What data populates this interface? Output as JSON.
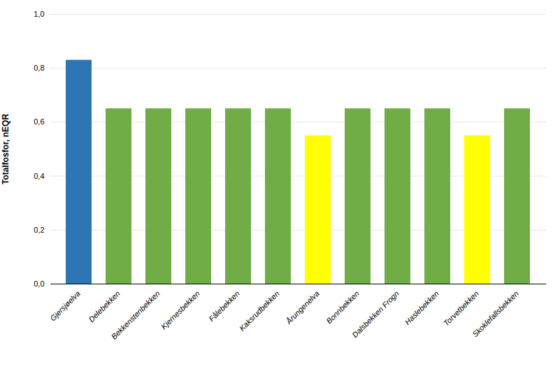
{
  "chart_data": {
    "type": "bar",
    "categories": [
      "Gjersjøelva",
      "Delebekken",
      "Bekkenstenbekken",
      "Kjernesbekken",
      "Fålebekken",
      "Kaksrudbekken",
      "Årungenelva",
      "Bonnbekken",
      "Dalsbekken Frogn",
      "Haslebekken",
      "Torvetbekken",
      "Skoklefallsbekken"
    ],
    "values": [
      0.83,
      0.65,
      0.65,
      0.65,
      0.65,
      0.65,
      0.55,
      0.65,
      0.65,
      0.65,
      0.55,
      0.65
    ],
    "colors": [
      "#2e75b6",
      "#70ad47",
      "#70ad47",
      "#70ad47",
      "#70ad47",
      "#70ad47",
      "#ffff00",
      "#70ad47",
      "#70ad47",
      "#70ad47",
      "#ffff00",
      "#70ad47"
    ],
    "ylabel": "Totalfosfor, nEQR",
    "ylim": [
      0.0,
      1.0
    ],
    "yticks": [
      {
        "value": 0.0,
        "label": "0,0"
      },
      {
        "value": 0.2,
        "label": "0,2"
      },
      {
        "value": 0.4,
        "label": "0,4"
      },
      {
        "value": 0.6,
        "label": "0,6"
      },
      {
        "value": 0.8,
        "label": "0,8"
      },
      {
        "value": 1.0,
        "label": "1,0"
      }
    ],
    "grid": true
  }
}
